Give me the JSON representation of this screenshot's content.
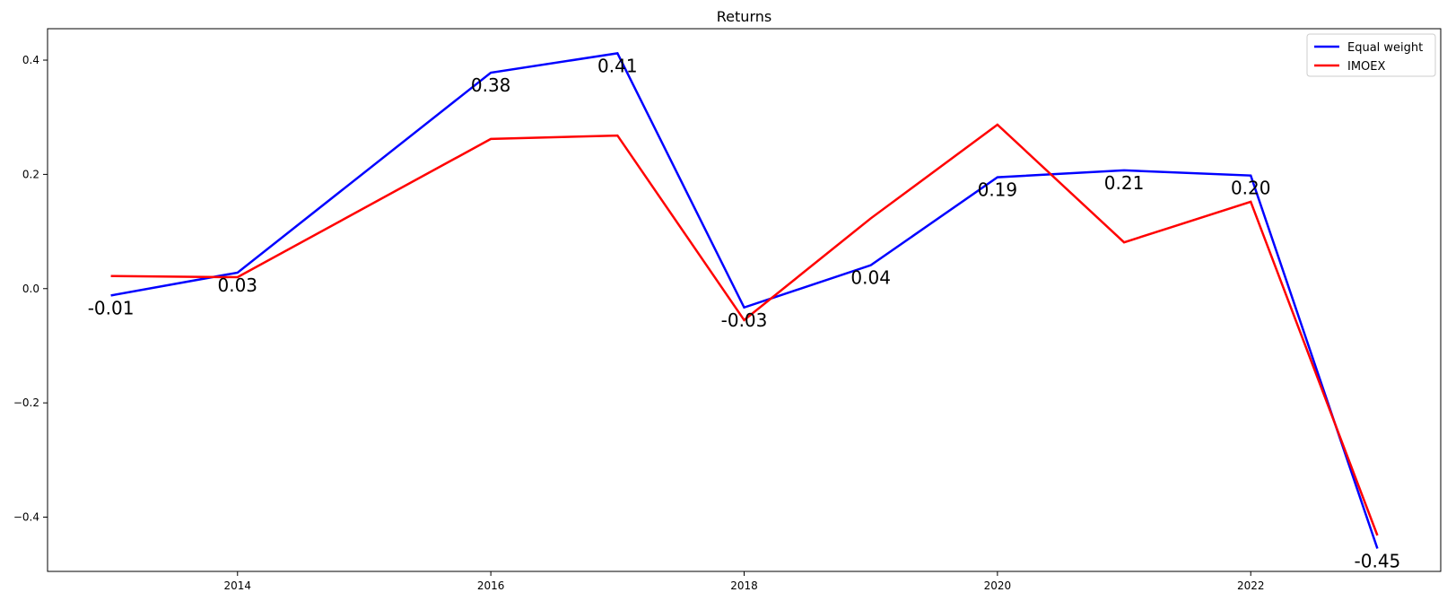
{
  "chart_data": {
    "type": "line",
    "title": "Returns",
    "xlabel": "",
    "ylabel": "",
    "x": [
      2013,
      2014,
      2016,
      2017,
      2018,
      2019,
      2020,
      2021,
      2022,
      2023
    ],
    "xlim": [
      2012.5,
      2023.5
    ],
    "ylim": [
      -0.495,
      0.455
    ],
    "xticks": [
      2014,
      2016,
      2018,
      2020,
      2022
    ],
    "yticks": [
      -0.4,
      -0.2,
      0.0,
      0.2,
      0.4
    ],
    "ytick_labels": [
      "−0.4",
      "−0.2",
      "0.0",
      "0.2",
      "0.4"
    ],
    "grid": false,
    "legend_position": "top-right",
    "series": [
      {
        "name": "Equal weight",
        "color": "#0000ff",
        "values": [
          -0.012,
          0.028,
          0.378,
          0.412,
          -0.033,
          0.041,
          0.195,
          0.207,
          0.198,
          -0.455
        ],
        "labels": [
          "-0.01",
          "0.03",
          "0.38",
          "0.41",
          "-0.03",
          "0.04",
          "0.19",
          "0.21",
          "0.20",
          "-0.45"
        ]
      },
      {
        "name": "IMOEX",
        "color": "#ff0000",
        "values": [
          0.022,
          0.02,
          0.262,
          0.268,
          -0.055,
          0.123,
          0.287,
          0.081,
          0.152,
          -0.432
        ]
      }
    ]
  }
}
